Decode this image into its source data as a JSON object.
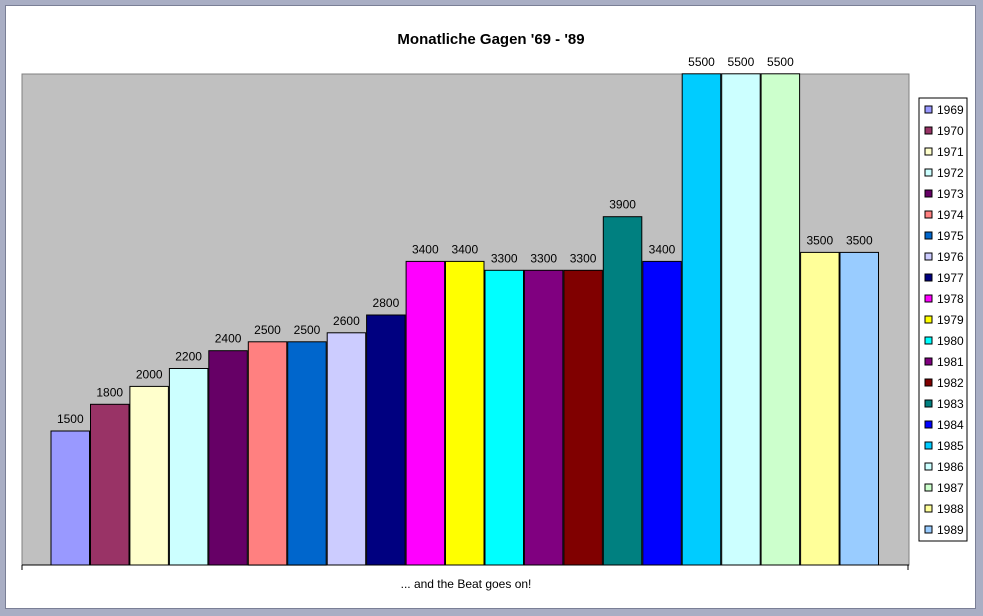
{
  "chart_data": {
    "type": "bar",
    "title": "Monatliche Gagen '69 - '89",
    "xlabel": "... and the Beat goes on!",
    "ylabel": "",
    "ylim": [
      0,
      6000
    ],
    "grid": false,
    "legend_position": "right",
    "plot_background": "#c0c0c0",
    "series": [
      {
        "name": "1969",
        "value": 1500,
        "color": "#9999ff"
      },
      {
        "name": "1970",
        "value": 1800,
        "color": "#993366"
      },
      {
        "name": "1971",
        "value": 2000,
        "color": "#ffffcc"
      },
      {
        "name": "1972",
        "value": 2200,
        "color": "#ccffff"
      },
      {
        "name": "1973",
        "value": 2400,
        "color": "#660066"
      },
      {
        "name": "1974",
        "value": 2500,
        "color": "#ff8080"
      },
      {
        "name": "1975",
        "value": 2500,
        "color": "#0066cc"
      },
      {
        "name": "1976",
        "value": 2600,
        "color": "#ccccff"
      },
      {
        "name": "1977",
        "value": 2800,
        "color": "#000080"
      },
      {
        "name": "1978",
        "value": 3400,
        "color": "#ff00ff"
      },
      {
        "name": "1979",
        "value": 3400,
        "color": "#ffff00"
      },
      {
        "name": "1980",
        "value": 3300,
        "color": "#00ffff"
      },
      {
        "name": "1981",
        "value": 3300,
        "color": "#800080"
      },
      {
        "name": "1982",
        "value": 3300,
        "color": "#800000"
      },
      {
        "name": "1983",
        "value": 3900,
        "color": "#008080"
      },
      {
        "name": "1984",
        "value": 3400,
        "color": "#0000ff"
      },
      {
        "name": "1985",
        "value": 5500,
        "color": "#00ccff"
      },
      {
        "name": "1986",
        "value": 5500,
        "color": "#ccffff"
      },
      {
        "name": "1987",
        "value": 5500,
        "color": "#ccffcc"
      },
      {
        "name": "1988",
        "value": 3500,
        "color": "#ffff99"
      },
      {
        "name": "1989",
        "value": 3500,
        "color": "#99ccff"
      }
    ]
  }
}
